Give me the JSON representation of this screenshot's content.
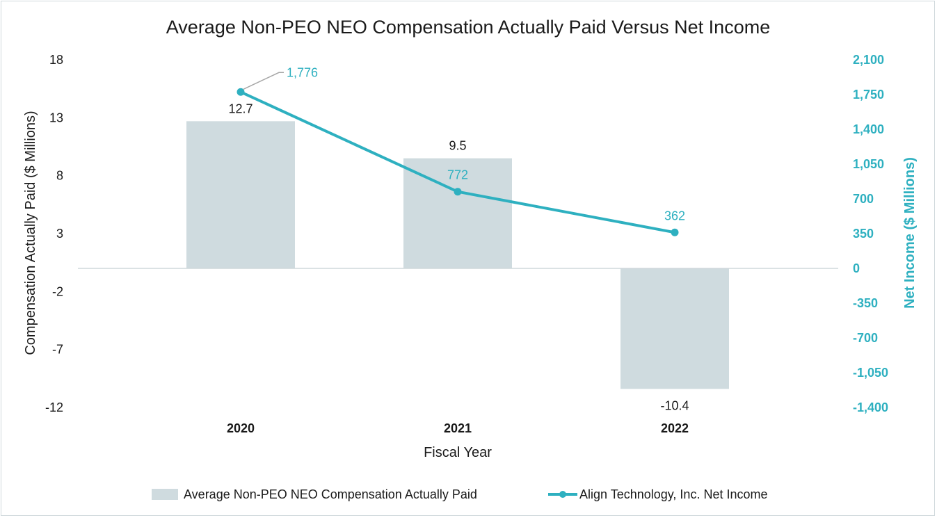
{
  "chart_data": {
    "type": "bar",
    "title": "Average Non-PEO NEO Compensation Actually Paid Versus Net Income",
    "categories": [
      "2020",
      "2021",
      "2022"
    ],
    "xlabel": "Fiscal Year",
    "ylabel": "Compensation Actually Paid ($ Millions)",
    "y2label": "Net Income ($ Millions)",
    "ylim": [
      -12,
      18
    ],
    "yticks": [
      "18",
      "13",
      "8",
      "3",
      "-2",
      "-7",
      "-12"
    ],
    "y2lim": [
      -1400,
      2100
    ],
    "y2ticks": [
      "2,100",
      "1,750",
      "1,400",
      "1,050",
      "700",
      "350",
      "0",
      "-350",
      "-700",
      "-1,050",
      "-1,400"
    ],
    "series": [
      {
        "name": "Average Non-PEO NEO Compensation Actually Paid",
        "type": "bar",
        "axis": "left",
        "values": [
          12.7,
          9.5,
          -10.4
        ],
        "labels": [
          "12.7",
          "9.5",
          "-10.4"
        ],
        "color": "#cfdbdf"
      },
      {
        "name": "Align Technology, Inc. Net Income",
        "type": "line",
        "axis": "right",
        "values": [
          1776,
          772,
          362
        ],
        "labels": [
          "1,776",
          "772",
          "362"
        ],
        "color": "#2eb0c0"
      }
    ],
    "legend": "bottom"
  }
}
